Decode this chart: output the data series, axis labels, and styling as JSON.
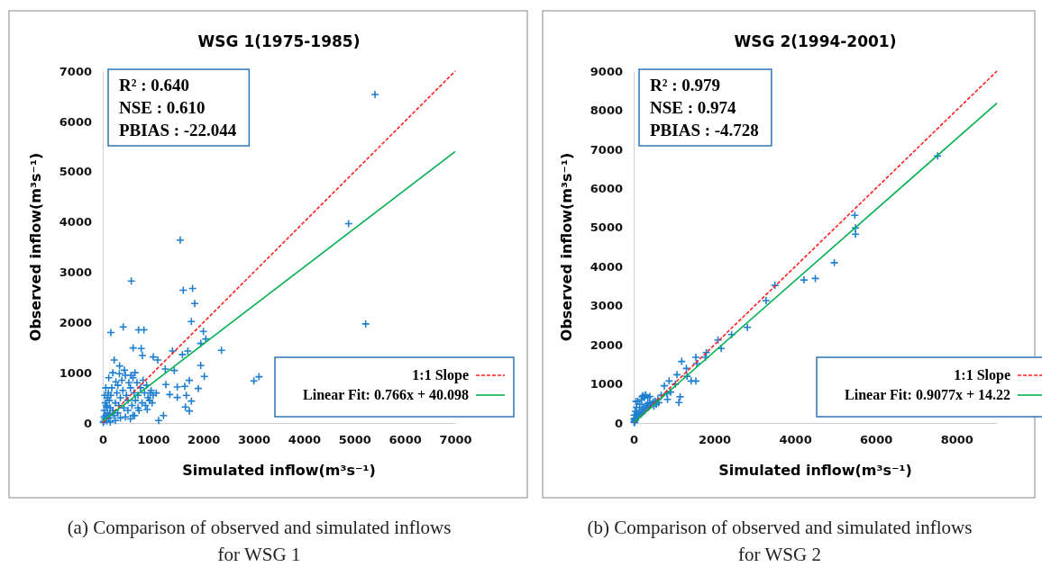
{
  "chart_data": [
    {
      "type": "scatter",
      "title": "WSG 1(1975-1985)",
      "xlabel": "Simulated inflow(m³s⁻¹)",
      "ylabel": "Observed inflow(m³s⁻¹)",
      "xlim": [
        0,
        7000
      ],
      "xticks": [
        0,
        1000,
        2000,
        3000,
        4000,
        5000,
        6000,
        7000
      ],
      "ylim": [
        0,
        7000
      ],
      "yticks": [
        0,
        1000,
        2000,
        3000,
        4000,
        5000,
        6000,
        7000
      ],
      "grid": false,
      "legend": "bottom right",
      "annotations": [
        "R² : 0.640",
        "NSE : 0.610",
        "PBIAS : -22.044",
        "(a) Comparison of observed and simulated inflows for WSG 1"
      ],
      "series": [
        {
          "type": "scatter",
          "marker": "cross",
          "color": "#1f7fd0",
          "x": [
            5407,
            4882,
            1540,
            567,
            1599,
            1784,
            1826,
            1760,
            5222,
            161,
            406,
            710,
            818,
            1999,
            2047,
            1946,
            2357,
            603,
            764,
            1385,
            1689,
            1582,
            788,
            227,
            1003,
            1092,
            334,
            1946,
            3002,
            3103,
            2017,
            1420,
            1241,
            1719,
            1253,
            1898,
            1629,
            1480,
            1331,
            1480,
            1659,
            1760,
            1641,
            1719,
            1110,
            1206,
            633,
            883,
            943,
            1062,
            20,
            40,
            60,
            80,
            100,
            120,
            150,
            30,
            50,
            70,
            90,
            110,
            130,
            160,
            180,
            200,
            220,
            250,
            280,
            300,
            320,
            350,
            380,
            400,
            420,
            450,
            470,
            500,
            520,
            550,
            580,
            600,
            620,
            650,
            680,
            700,
            720,
            750,
            780,
            800,
            830,
            850,
            870,
            900,
            930,
            960,
            980,
            1000,
            250,
            350,
            450,
            550,
            150,
            300,
            500,
            600,
            700,
            40,
            60,
            120,
            200,
            10,
            25,
            80,
            140,
            260,
            330,
            430,
            560,
            640
          ],
          "values": [
            6534,
            3966,
            3638,
            2825,
            2640,
            2676,
            2377,
            2019,
            1971,
            1798,
            1911,
            1852,
            1852,
            1822,
            1672,
            1583,
            1445,
            1493,
            1481,
            1433,
            1433,
            1362,
            1344,
            1254,
            1314,
            1254,
            1135,
            1147,
            836,
            920,
            926,
            1045,
            1075,
            848,
            765,
            687,
            729,
            717,
            567,
            508,
            550,
            436,
            317,
            239,
            48,
            149,
            149,
            269,
            597,
            597,
            30,
            80,
            150,
            40,
            200,
            100,
            300,
            250,
            400,
            350,
            500,
            600,
            450,
            550,
            700,
            250,
            150,
            400,
            600,
            750,
            350,
            500,
            850,
            650,
            300,
            950,
            550,
            450,
            800,
            700,
            350,
            900,
            600,
            450,
            800,
            550,
            250,
            700,
            400,
            850,
            600,
            350,
            750,
            500,
            450,
            650,
            400,
            550,
            50,
            100,
            120,
            80,
            20,
            200,
            250,
            150,
            300,
            550,
            700,
            900,
            1000,
            10,
            120,
            320,
            180,
            820,
            980,
            1050,
            950,
            1000
          ]
        },
        {
          "type": "line",
          "name": "1:1 Slope",
          "color": "#ff2020",
          "line_style": "dashed",
          "marker": "none",
          "x": [
            0,
            7000
          ],
          "values": [
            0,
            7000
          ]
        },
        {
          "type": "line",
          "name": "Linear Fit: 0.766x + 40.098",
          "color": "#00b050",
          "line_style": "solid",
          "marker": "none",
          "x": [
            0,
            7000
          ],
          "values": [
            40,
            5400
          ]
        }
      ]
    },
    {
      "type": "scatter",
      "title": "WSG 2(1994-2001)",
      "xlabel": "Simulated inflow(m³s⁻¹)",
      "ylabel": "Observed inflow(m³s⁻¹)",
      "xlim": [
        0,
        9000
      ],
      "xticks": [
        0,
        2000,
        4000,
        6000,
        8000
      ],
      "ylim": [
        0,
        9000
      ],
      "yticks": [
        0,
        1000,
        2000,
        3000,
        4000,
        5000,
        6000,
        7000,
        8000,
        9000
      ],
      "grid": false,
      "legend": "bottom right",
      "annotations": [
        "R² : 0.979",
        "NSE : 0.974",
        "PBIAS : -4.728",
        "(b) Comparison of observed and simulated inflows for WSG 2"
      ],
      "series": [
        {
          "type": "scatter",
          "marker": "cross",
          "color": "#1f7fd0",
          "x": [
            7530,
            5480,
            5495,
            5495,
            4971,
            4501,
            4219,
            3499,
            3280,
            2818,
            2427,
            2168,
            2090,
            1800,
            1777,
            1542,
            1566,
            1542,
            1425,
            1190,
            1307,
            1323,
            1151,
            1119,
            1072,
            1033,
            877,
            759,
            838,
            822,
            916,
            681,
            290,
            211,
            55,
            10,
            20,
            30,
            50,
            60,
            80,
            100,
            120,
            150,
            180,
            200,
            220,
            250,
            280,
            300,
            330,
            350,
            380,
            400,
            420,
            450,
            480,
            500,
            530,
            560,
            600,
            620,
            40,
            70,
            100,
            150,
            200,
            230,
            260,
            300,
            350,
            400,
            5,
            15,
            25
          ],
          "values": [
            6829,
            5311,
            4988,
            4827,
            4101,
            3697,
            3657,
            3519,
            3132,
            2446,
            2260,
            1905,
            2123,
            1800,
            1679,
            1679,
            1518,
            1074,
            1074,
            1574,
            1396,
            1195,
            670,
            525,
            1235,
            993,
            1074,
            952,
            605,
            751,
            791,
            710,
            710,
            670,
            549,
            20,
            50,
            120,
            80,
            200,
            150,
            250,
            180,
            300,
            220,
            350,
            270,
            400,
            320,
            450,
            380,
            500,
            420,
            520,
            460,
            480,
            540,
            430,
            560,
            480,
            600,
            520,
            300,
            400,
            550,
            480,
            600,
            700,
            650,
            720,
            650,
            680,
            100,
            200,
            10
          ]
        },
        {
          "type": "line",
          "name": "1:1 Slope",
          "color": "#ff2020",
          "line_style": "dashed",
          "marker": "none",
          "x": [
            0,
            9000
          ],
          "values": [
            0,
            9000
          ]
        },
        {
          "type": "line",
          "name": "Linear Fit: 0.9077x + 14.22",
          "color": "#00b050",
          "line_style": "solid",
          "marker": "none",
          "x": [
            0,
            9000
          ],
          "values": [
            14,
            8180
          ]
        }
      ]
    }
  ]
}
